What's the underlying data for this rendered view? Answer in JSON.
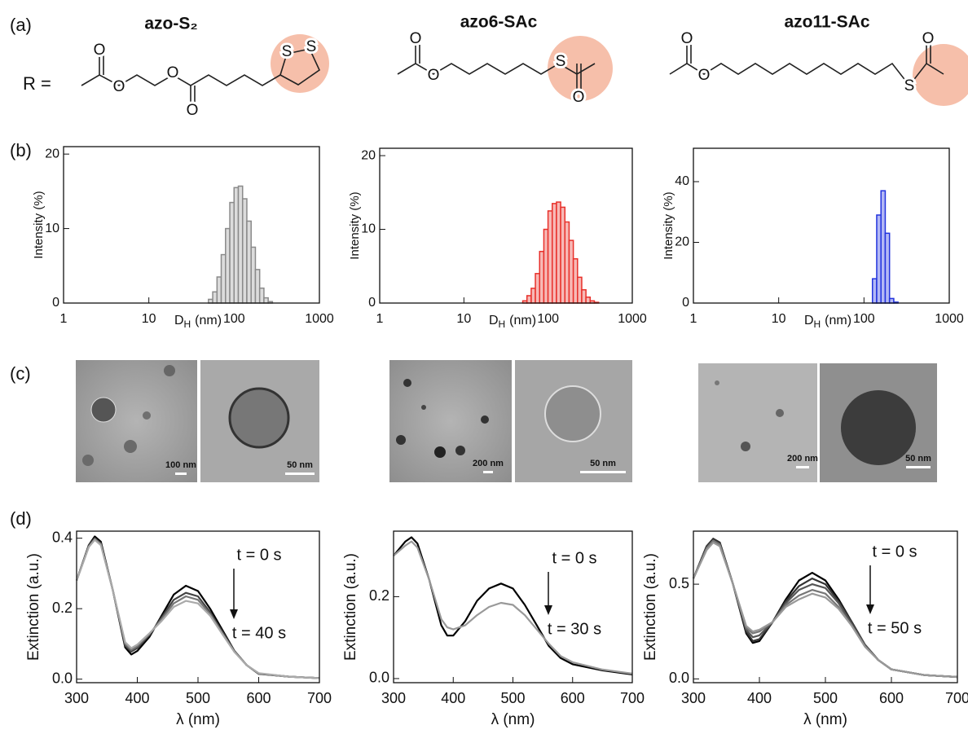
{
  "panel_labels": [
    "(a)",
    "(b)",
    "(c)",
    "(d)"
  ],
  "r_label": "R =",
  "molecules": [
    "azo-S₂",
    "azo6-SAc",
    "azo11-SAc"
  ],
  "structures": [
    {
      "atoms": [
        "O",
        "O",
        "O",
        "O",
        "S",
        "S"
      ]
    },
    {
      "atoms": [
        "O",
        "O",
        "S",
        "O"
      ]
    },
    {
      "atoms": [
        "O",
        "O",
        "S",
        "O"
      ]
    }
  ],
  "tem": [
    {
      "scale_bars": [
        "100 nm",
        "50 nm"
      ]
    },
    {
      "scale_bars": [
        "200 nm",
        "50 nm"
      ]
    },
    {
      "scale_bars": [
        "200 nm",
        "50 nm"
      ]
    }
  ],
  "chart_data": [
    {
      "type": "histogram",
      "ylabel": "Intensity (%)",
      "xlabel": {
        "symbol": "D",
        "subscript": "H",
        "unit": "(nm)"
      },
      "log_x": true,
      "xlim": [
        1,
        1000
      ],
      "xticks": [
        1,
        10,
        100,
        1000
      ],
      "ylim": [
        0,
        21
      ],
      "yticks": [
        0,
        10,
        20
      ],
      "color": "#8a8a8a",
      "fill_color": "#dcdcdc",
      "bins": [
        50,
        56.1,
        63,
        70.6,
        79.3,
        89,
        99.8,
        112,
        125.7,
        141,
        158.3,
        177.6,
        199.3,
        223.6,
        250.9,
        281.5
      ],
      "values": [
        0.5,
        1.5,
        3.5,
        6.5,
        10,
        13.5,
        15.5,
        15.7,
        14,
        11,
        7.5,
        4.5,
        2,
        0.7,
        0.2
      ]
    },
    {
      "type": "histogram",
      "ylabel": "Intensity (%)",
      "xlabel": {
        "symbol": "D",
        "subscript": "H",
        "unit": "(nm)"
      },
      "log_x": true,
      "xlim": [
        1,
        1000
      ],
      "xticks": [
        1,
        10,
        100,
        1000
      ],
      "ylim": [
        0,
        21
      ],
      "yticks": [
        0,
        10,
        20
      ],
      "color": "#e8302a",
      "fill_color": "#f7b9b6",
      "bins": [
        50,
        56.1,
        63,
        70.6,
        79.3,
        89,
        99.8,
        112,
        125.7,
        141,
        158.3,
        177.6,
        199.3,
        223.6,
        250.9,
        281.5,
        315.9,
        354.4,
        397.7
      ],
      "values": [
        0.3,
        1,
        2,
        4,
        7,
        10,
        12.5,
        13.5,
        13.7,
        13,
        11,
        8.5,
        6,
        3.5,
        1.8,
        0.8,
        0.3,
        0.1
      ]
    },
    {
      "type": "histogram",
      "ylabel": "Intensity (%)",
      "xlabel": {
        "symbol": "D",
        "subscript": "H",
        "unit": "(nm)"
      },
      "log_x": true,
      "xlim": [
        1,
        1000
      ],
      "xticks": [
        1,
        10,
        100,
        1000
      ],
      "ylim": [
        0,
        51
      ],
      "yticks": [
        0,
        20,
        40
      ],
      "color": "#2233dd",
      "fill_color": "#b3b8f5",
      "bins": [
        125.7,
        141,
        158.3,
        177.6,
        199.3,
        223.6,
        250.9
      ],
      "values": [
        8,
        29,
        37,
        23,
        1.5,
        0.3
      ]
    },
    {
      "type": "line",
      "ylabel": "Extinction (a.u.)",
      "xlabel": "λ (nm)",
      "annotations": [
        "t = 0 s",
        "t = 40 s"
      ],
      "xlim": [
        300,
        700
      ],
      "xticks": [
        300,
        400,
        500,
        600,
        700
      ],
      "ylim": [
        -0.01,
        0.42
      ],
      "yticks": [
        {
          "value": 0,
          "label": "0.0"
        },
        0.2,
        0.4
      ],
      "x": [
        300,
        320,
        330,
        340,
        360,
        380,
        390,
        400,
        420,
        440,
        460,
        480,
        500,
        520,
        540,
        560,
        580,
        600,
        650,
        700
      ],
      "series": [
        {
          "color": "#000000",
          "values": [
            0.28,
            0.38,
            0.405,
            0.39,
            0.25,
            0.09,
            0.07,
            0.08,
            0.12,
            0.18,
            0.24,
            0.265,
            0.25,
            0.2,
            0.14,
            0.08,
            0.04,
            0.015,
            0.007,
            0.003
          ]
        },
        {
          "color": "#444444",
          "values": [
            0.28,
            0.38,
            0.4,
            0.385,
            0.25,
            0.095,
            0.078,
            0.088,
            0.125,
            0.175,
            0.225,
            0.245,
            0.235,
            0.19,
            0.135,
            0.08,
            0.04,
            0.016,
            0.007,
            0.003
          ]
        },
        {
          "color": "#777777",
          "values": [
            0.28,
            0.375,
            0.398,
            0.383,
            0.25,
            0.1,
            0.083,
            0.093,
            0.128,
            0.17,
            0.215,
            0.235,
            0.225,
            0.185,
            0.13,
            0.078,
            0.04,
            0.016,
            0.007,
            0.003
          ]
        },
        {
          "color": "#aaaaaa",
          "values": [
            0.28,
            0.375,
            0.395,
            0.38,
            0.25,
            0.105,
            0.088,
            0.098,
            0.13,
            0.165,
            0.205,
            0.222,
            0.215,
            0.18,
            0.128,
            0.077,
            0.04,
            0.017,
            0.007,
            0.003
          ]
        }
      ]
    },
    {
      "type": "line",
      "ylabel": "Extinction (a.u.)",
      "xlabel": "λ (nm)",
      "annotations": [
        "t = 0 s",
        "t = 30 s"
      ],
      "xlim": [
        300,
        700
      ],
      "xticks": [
        300,
        400,
        500,
        600,
        700
      ],
      "ylim": [
        -0.01,
        0.36
      ],
      "yticks": [
        {
          "value": 0,
          "label": "0.0"
        },
        0.2
      ],
      "x": [
        300,
        320,
        330,
        340,
        360,
        380,
        390,
        400,
        420,
        440,
        460,
        480,
        500,
        520,
        540,
        560,
        580,
        600,
        650,
        700
      ],
      "series": [
        {
          "color": "#000000",
          "values": [
            0.3,
            0.335,
            0.345,
            0.33,
            0.24,
            0.13,
            0.105,
            0.105,
            0.14,
            0.19,
            0.22,
            0.232,
            0.22,
            0.18,
            0.13,
            0.08,
            0.05,
            0.035,
            0.02,
            0.01
          ]
        },
        {
          "color": "#999999",
          "values": [
            0.3,
            0.325,
            0.335,
            0.32,
            0.24,
            0.145,
            0.125,
            0.12,
            0.13,
            0.155,
            0.175,
            0.185,
            0.18,
            0.155,
            0.12,
            0.085,
            0.055,
            0.04,
            0.022,
            0.012
          ]
        }
      ]
    },
    {
      "type": "line",
      "ylabel": "Extinction (a.u.)",
      "xlabel": "λ (nm)",
      "annotations": [
        "t = 0 s",
        "t = 50 s"
      ],
      "xlim": [
        300,
        700
      ],
      "xticks": [
        300,
        400,
        500,
        600,
        700
      ],
      "ylim": [
        -0.02,
        0.78
      ],
      "yticks": [
        {
          "value": 0,
          "label": "0.0"
        },
        0.5
      ],
      "x": [
        300,
        320,
        330,
        340,
        360,
        380,
        390,
        400,
        420,
        440,
        460,
        480,
        500,
        520,
        540,
        560,
        580,
        600,
        650,
        700
      ],
      "series": [
        {
          "color": "#000000",
          "values": [
            0.53,
            0.7,
            0.74,
            0.72,
            0.5,
            0.24,
            0.19,
            0.2,
            0.3,
            0.42,
            0.52,
            0.56,
            0.52,
            0.42,
            0.3,
            0.18,
            0.1,
            0.05,
            0.02,
            0.01
          ]
        },
        {
          "color": "#333333",
          "values": [
            0.53,
            0.7,
            0.74,
            0.72,
            0.5,
            0.25,
            0.2,
            0.21,
            0.3,
            0.41,
            0.49,
            0.53,
            0.5,
            0.41,
            0.3,
            0.18,
            0.1,
            0.05,
            0.02,
            0.01
          ]
        },
        {
          "color": "#555555",
          "values": [
            0.53,
            0.69,
            0.73,
            0.71,
            0.5,
            0.26,
            0.22,
            0.23,
            0.3,
            0.4,
            0.47,
            0.5,
            0.48,
            0.4,
            0.29,
            0.18,
            0.1,
            0.05,
            0.02,
            0.01
          ]
        },
        {
          "color": "#777777",
          "values": [
            0.53,
            0.69,
            0.73,
            0.71,
            0.5,
            0.27,
            0.24,
            0.25,
            0.3,
            0.39,
            0.44,
            0.47,
            0.45,
            0.38,
            0.28,
            0.17,
            0.1,
            0.05,
            0.02,
            0.01
          ]
        },
        {
          "color": "#999999",
          "values": [
            0.53,
            0.68,
            0.72,
            0.7,
            0.5,
            0.28,
            0.25,
            0.26,
            0.3,
            0.38,
            0.42,
            0.45,
            0.43,
            0.37,
            0.28,
            0.17,
            0.1,
            0.05,
            0.02,
            0.01
          ]
        }
      ]
    }
  ]
}
